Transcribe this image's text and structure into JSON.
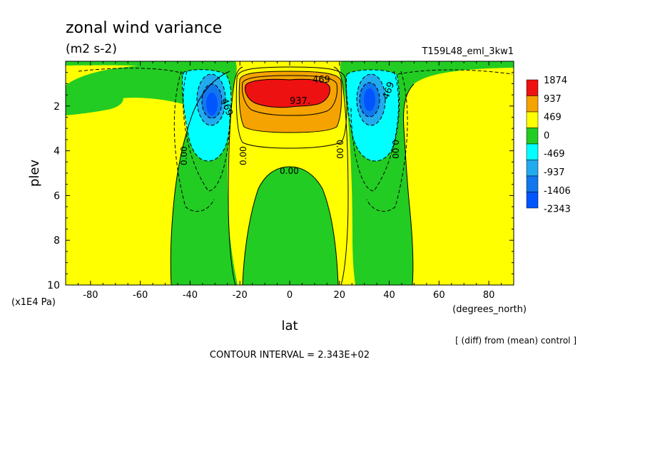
{
  "chart_data": {
    "type": "heatmap",
    "title": "zonal wind variance",
    "units": "(m2 s-2)",
    "experiment": "T159L48_eml_3kw1",
    "xlabel": "lat",
    "x_units": "(degrees_north)",
    "ylabel": "plev",
    "y_units": "(x1E4 Pa)",
    "xlim": [
      -90,
      90
    ],
    "ylim": [
      0,
      10
    ],
    "y_inverted": true,
    "x_ticks": [
      -80,
      -60,
      -40,
      -20,
      0,
      20,
      40,
      60,
      80
    ],
    "y_ticks": [
      2,
      4,
      6,
      8,
      10
    ],
    "colorbar": {
      "levels": [
        "1874",
        "937",
        "469",
        "0",
        "-469",
        "-937",
        "-1406",
        "-2343"
      ],
      "colors": [
        "#ee1111",
        "#f5a300",
        "#ffff00",
        "#22cc22",
        "#00ffff",
        "#22aaee",
        "#1177ee",
        "#0055ff"
      ]
    },
    "contour_labels": [
      "469",
      "937.",
      "469",
      "469",
      "0.00",
      "0.00",
      "0.00",
      "0.00",
      "0.00"
    ],
    "note": "[ (diff) from (mean) control ]",
    "contour_interval": "CONTOUR INTERVAL = 2.343E+02",
    "background_color": "#ffff00"
  }
}
